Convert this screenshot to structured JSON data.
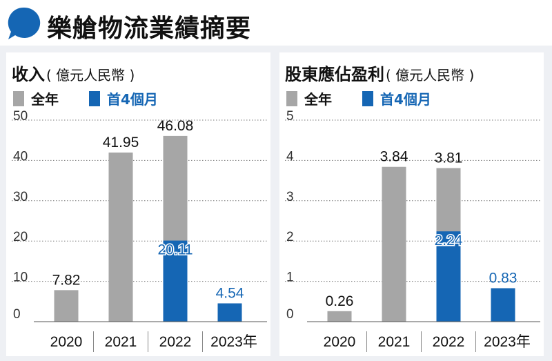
{
  "title": "樂艙物流業績摘要",
  "colors": {
    "full_year": "#a6a6a6",
    "first_4_months": "#1566b4",
    "bubble": "#1566b4"
  },
  "icon": "speech-bubble-icon",
  "legend": {
    "full_year": "全年",
    "first_4_months": "首4個月"
  },
  "chart_data": [
    {
      "type": "bar",
      "title": "收入",
      "unit": "( 億元人民幣 )",
      "categories": [
        "2020",
        "2021",
        "2022",
        "2023年"
      ],
      "series": [
        {
          "name": "全年",
          "values": [
            7.82,
            41.95,
            46.08,
            null
          ]
        },
        {
          "name": "首4個月",
          "values": [
            null,
            null,
            20.11,
            4.54
          ]
        }
      ],
      "ylim": [
        0,
        50
      ],
      "yticks": [
        "0",
        "10",
        "20",
        "30",
        "40",
        "50"
      ],
      "grid": true,
      "legend": "top-left"
    },
    {
      "type": "bar",
      "title": "股東應佔盈利",
      "unit": "( 億元人民幣 )",
      "categories": [
        "2020",
        "2021",
        "2022",
        "2023年"
      ],
      "series": [
        {
          "name": "全年",
          "values": [
            0.26,
            3.84,
            3.81,
            null
          ]
        },
        {
          "name": "首4個月",
          "values": [
            null,
            null,
            2.24,
            0.83
          ]
        }
      ],
      "ylim": [
        0,
        5
      ],
      "yticks": [
        "0",
        "1",
        "2",
        "3",
        "4",
        "5"
      ],
      "grid": true,
      "legend": "top-left"
    }
  ]
}
